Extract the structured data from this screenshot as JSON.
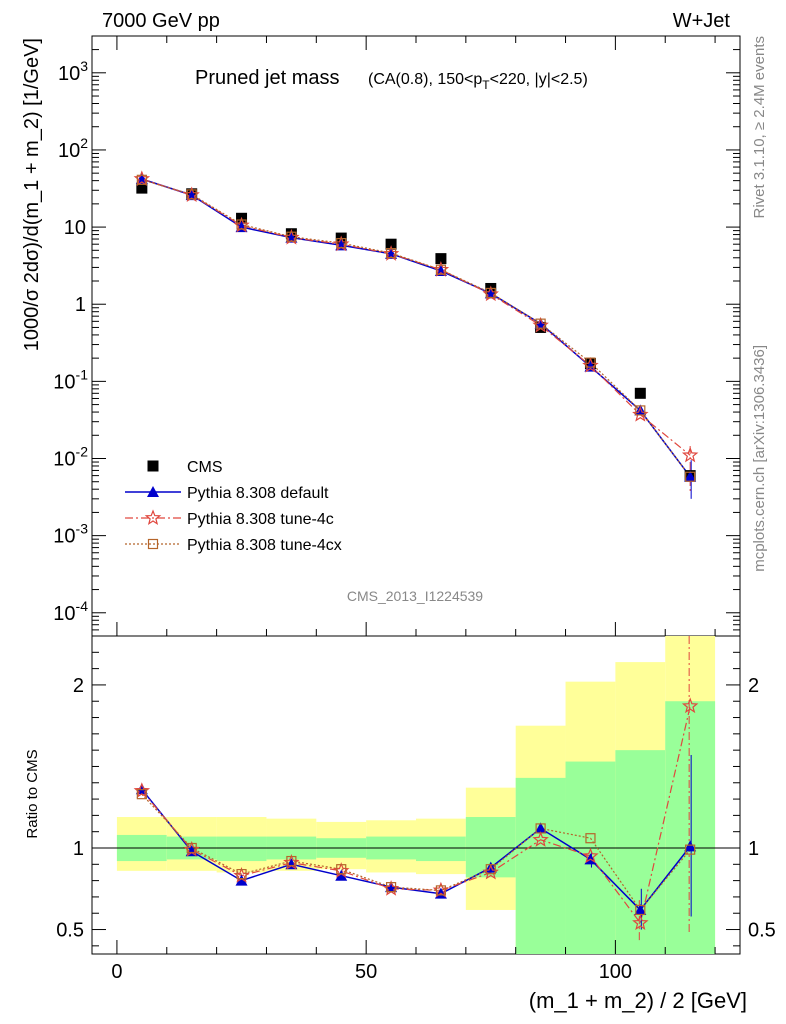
{
  "header": {
    "left": "7000 GeV pp",
    "right": "W+Jet"
  },
  "side": {
    "rivet": "Rivet 3.1.10, ≥ 2.4M events",
    "mcplots": "mcplots.cern.ch [arXiv:1306.3436]"
  },
  "plot_title": {
    "main": "Pruned jet mass",
    "sub_pre": "(CA(0.8), 150<p",
    "sub_sub": "T",
    "sub_post": "<220, |y|<2.5)"
  },
  "analysis_id": "CMS_2013_I1224539",
  "colors": {
    "cms": "#000000",
    "default": "#0000cc",
    "tune4c": "#e0473e",
    "tune4cx": "#b5652a",
    "band_inner": "#99ff99",
    "band_outer": "#ffff99"
  },
  "chart_data": [
    {
      "type": "line",
      "panel": "main",
      "ylabel": "1000/σ 2dσ)/d(m_1 + m_2) [1/GeV]",
      "ylog": true,
      "xlim": [
        -5,
        125
      ],
      "ylim": [
        5e-05,
        3000
      ],
      "y_ticks": [
        {
          "v": 0.0001,
          "b": "10",
          "e": "-4"
        },
        {
          "v": 0.001,
          "b": "10",
          "e": "-3"
        },
        {
          "v": 0.01,
          "b": "10",
          "e": "-2"
        },
        {
          "v": 0.1,
          "b": "10",
          "e": "-1"
        },
        {
          "v": 1,
          "b": "1",
          "e": ""
        },
        {
          "v": 10,
          "b": "10",
          "e": ""
        },
        {
          "v": 100,
          "b": "10",
          "e": "2"
        },
        {
          "v": 1000,
          "b": "10",
          "e": "3"
        }
      ],
      "x": [
        5,
        15,
        25,
        35,
        45,
        55,
        65,
        75,
        85,
        95,
        105,
        115
      ],
      "series": [
        {
          "name": "CMS",
          "key": "cms",
          "values": [
            32,
            27,
            13,
            8.2,
            7.2,
            6.0,
            3.9,
            1.6,
            0.5,
            0.17,
            0.07,
            0.006
          ]
        },
        {
          "name": "Pythia 8.308 default",
          "key": "default",
          "values": [
            42,
            26,
            10,
            7.3,
            5.8,
            4.5,
            2.7,
            1.38,
            0.56,
            0.155,
            0.042,
            0.0058
          ]
        },
        {
          "name": "Pythia 8.308 tune-4c",
          "key": "tune4c",
          "values": [
            42,
            26,
            10.5,
            7.3,
            6.0,
            4.5,
            2.8,
            1.35,
            0.53,
            0.16,
            0.037,
            0.011
          ]
        },
        {
          "name": "Pythia 8.308 tune-4cx",
          "key": "tune4cx",
          "values": [
            41,
            26.5,
            10.8,
            7.5,
            6.2,
            4.6,
            2.8,
            1.4,
            0.56,
            0.175,
            0.042,
            0.0058
          ]
        }
      ],
      "legend_position": "bottom-left"
    },
    {
      "type": "line",
      "panel": "ratio",
      "xlabel": "(m_1 + m_2) / 2 [GeV]",
      "ylabel": "Ratio to CMS",
      "ylim": [
        0.35,
        2.3
      ],
      "xlim": [
        -5,
        125
      ],
      "x_ticks": [
        0,
        50,
        100
      ],
      "y_ticks": [
        0.5,
        1,
        2
      ],
      "bins": [
        [
          0,
          10
        ],
        [
          10,
          20
        ],
        [
          20,
          30
        ],
        [
          30,
          40
        ],
        [
          40,
          50
        ],
        [
          50,
          60
        ],
        [
          60,
          70
        ],
        [
          70,
          80
        ],
        [
          80,
          90
        ],
        [
          90,
          100
        ],
        [
          100,
          110
        ],
        [
          110,
          120
        ]
      ],
      "band_inner": [
        [
          0.92,
          1.08
        ],
        [
          0.93,
          1.07
        ],
        [
          0.92,
          1.07
        ],
        [
          0.93,
          1.07
        ],
        [
          0.94,
          1.06
        ],
        [
          0.93,
          1.07
        ],
        [
          0.92,
          1.07
        ],
        [
          0.82,
          1.19
        ],
        [
          0.0,
          1.43
        ],
        [
          0.0,
          1.53
        ],
        [
          0.0,
          1.6
        ],
        [
          0.0,
          1.9
        ]
      ],
      "band_outer": [
        [
          0.86,
          1.19
        ],
        [
          0.86,
          1.19
        ],
        [
          0.85,
          1.19
        ],
        [
          0.86,
          1.18
        ],
        [
          0.87,
          1.16
        ],
        [
          0.85,
          1.17
        ],
        [
          0.84,
          1.18
        ],
        [
          0.62,
          1.37
        ],
        [
          0.0,
          1.75
        ],
        [
          0.0,
          2.02
        ],
        [
          0.0,
          2.14
        ],
        [
          0.0,
          2.5
        ]
      ],
      "x": [
        5,
        15,
        25,
        35,
        45,
        55,
        65,
        75,
        85,
        95,
        105,
        115
      ],
      "series": [
        {
          "name": "Pythia 8.308 default",
          "key": "default",
          "values": [
            1.36,
            0.98,
            0.8,
            0.9,
            0.83,
            0.76,
            0.72,
            0.88,
            1.12,
            0.93,
            0.62,
            1.01
          ]
        },
        {
          "name": "Pythia 8.308 tune-4c",
          "key": "tune4c",
          "values": [
            1.35,
            0.99,
            0.83,
            0.91,
            0.86,
            0.75,
            0.74,
            0.85,
            1.05,
            0.95,
            0.54,
            1.87
          ]
        },
        {
          "name": "Pythia 8.308 tune-4cx",
          "key": "tune4cx",
          "values": [
            1.33,
            1.0,
            0.84,
            0.92,
            0.87,
            0.76,
            0.74,
            0.87,
            1.12,
            1.06,
            0.62,
            0.99
          ]
        }
      ]
    }
  ]
}
